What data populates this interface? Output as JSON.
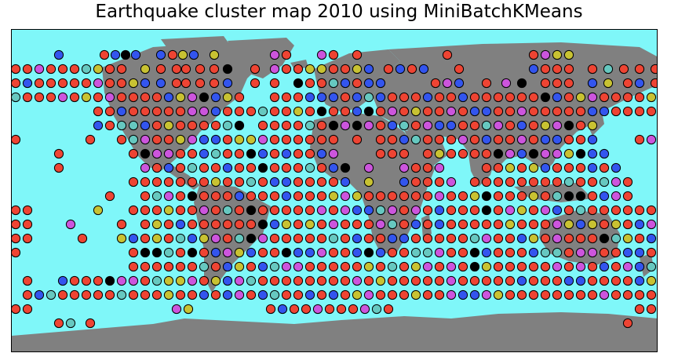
{
  "title": "Earthquake cluster map 2010 using MiniBatchKMeans",
  "colors": {
    "ocean": "#7ff7f9",
    "land": "#808080",
    "cluster_red": "#ee4433",
    "cluster_blue": "#3355ee",
    "cluster_purple": "#cc55dd",
    "cluster_olive": "#c8c232",
    "cluster_teal": "#66c8c0",
    "cluster_black": "#000000",
    "marker_edge": "#000000"
  }
}
